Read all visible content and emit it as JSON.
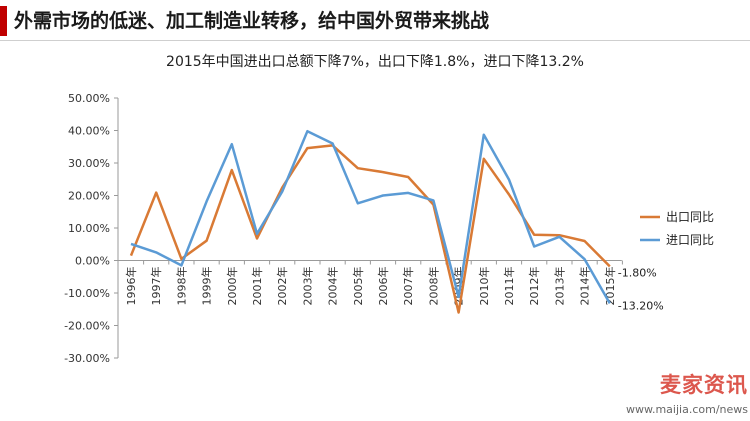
{
  "page": {
    "title": "外需市场的低迷、加工制造业转移，给中国外贸带来挑战",
    "accent_color": "#c00000"
  },
  "watermark": {
    "brand": "麦家资讯",
    "url": "www.maijia.com/news"
  },
  "chart_data": {
    "type": "line",
    "title": "2015年中国进出口总额下降7%，出口下降1.8%，进口下降13.2%",
    "categories": [
      "1996年",
      "1997年",
      "1998年",
      "1999年",
      "2000年",
      "2001年",
      "2002年",
      "2003年",
      "2004年",
      "2005年",
      "2006年",
      "2007年",
      "2008年",
      "2009年",
      "2010年",
      "2011年",
      "2012年",
      "2013年",
      "2014年",
      "2015年"
    ],
    "series": [
      {
        "name": "出口同比",
        "color": "#d97a35",
        "values": [
          1.5,
          20.9,
          0.5,
          6.1,
          27.8,
          6.8,
          22.4,
          34.6,
          35.4,
          28.4,
          27.2,
          25.7,
          17.2,
          -16.0,
          31.3,
          20.3,
          7.9,
          7.8,
          6.0,
          -1.8
        ]
      },
      {
        "name": "进口同比",
        "color": "#5b9bd5",
        "values": [
          5.1,
          2.5,
          -1.5,
          18.2,
          35.8,
          8.2,
          21.2,
          39.8,
          36.0,
          17.6,
          20.0,
          20.8,
          18.5,
          -11.2,
          38.7,
          24.9,
          4.3,
          7.3,
          0.4,
          -13.2
        ]
      }
    ],
    "end_labels": [
      "-1.80%",
      "-13.20%"
    ],
    "yticks": [
      "50.00%",
      "40.00%",
      "30.00%",
      "20.00%",
      "10.00%",
      "0.00%",
      "-10.00%",
      "-20.00%",
      "-30.00%"
    ],
    "ylim": [
      -30,
      50
    ],
    "legend_position": "right"
  }
}
